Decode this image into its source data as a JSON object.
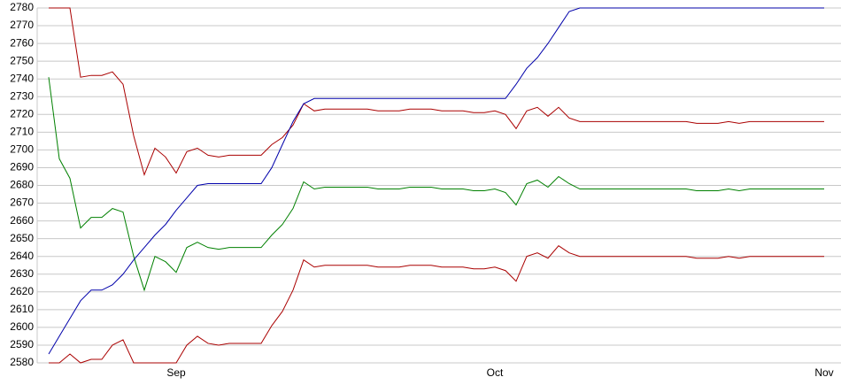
{
  "chart_data": {
    "type": "line",
    "categories": [
      null,
      null,
      null,
      null,
      null,
      null,
      null,
      null,
      null,
      null,
      null,
      null,
      "Sep",
      null,
      null,
      null,
      null,
      null,
      null,
      null,
      null,
      null,
      null,
      null,
      null,
      null,
      null,
      null,
      null,
      null,
      null,
      null,
      null,
      null,
      null,
      null,
      null,
      null,
      null,
      null,
      null,
      null,
      "Oct",
      null,
      null,
      null,
      null,
      null,
      null,
      null,
      null,
      null,
      null,
      null,
      null,
      null,
      null,
      null,
      null,
      null,
      null,
      null,
      null,
      null,
      null,
      null,
      null,
      null,
      null,
      null,
      null,
      null,
      null,
      "Nov"
    ],
    "series": [
      {
        "color": "#aa0000",
        "values": [
          2780,
          2780,
          2780,
          2741,
          2742,
          2742,
          2744,
          2737,
          2708,
          2686,
          2701,
          2696,
          2687,
          2699,
          2701,
          2697,
          2696,
          2697,
          2697,
          2697,
          2697,
          2703,
          2707,
          2714,
          2726,
          2722,
          2723,
          2723,
          2723,
          2723,
          2723,
          2722,
          2722,
          2722,
          2723,
          2723,
          2723,
          2722,
          2722,
          2722,
          2721,
          2721,
          2722,
          2720,
          2712,
          2722,
          2724,
          2719,
          2724,
          2718,
          2716,
          2716,
          2716,
          2716,
          2716,
          2716,
          2716,
          2716,
          2716,
          2716,
          2716,
          2715,
          2715,
          2715,
          2716,
          2715,
          2716,
          2716,
          2716,
          2716,
          2716,
          2716,
          2716,
          2716
        ]
      },
      {
        "color": "#008000",
        "values": [
          2741,
          2695,
          2684,
          2656,
          2662,
          2662,
          2667,
          2665,
          2640,
          2621,
          2640,
          2637,
          2631,
          2645,
          2648,
          2645,
          2644,
          2645,
          2645,
          2645,
          2645,
          2652,
          2658,
          2667,
          2682,
          2678,
          2679,
          2679,
          2679,
          2679,
          2679,
          2678,
          2678,
          2678,
          2679,
          2679,
          2679,
          2678,
          2678,
          2678,
          2677,
          2677,
          2678,
          2676,
          2669,
          2681,
          2683,
          2679,
          2685,
          2681,
          2678,
          2678,
          2678,
          2678,
          2678,
          2678,
          2678,
          2678,
          2678,
          2678,
          2678,
          2677,
          2677,
          2677,
          2678,
          2677,
          2678,
          2678,
          2678,
          2678,
          2678,
          2678,
          2678,
          2678
        ]
      },
      {
        "color": "#aa0000",
        "values": [
          2580,
          2580,
          2585,
          2580,
          2582,
          2582,
          2590,
          2593,
          2580,
          2580,
          2580,
          2580,
          2580,
          2590,
          2595,
          2591,
          2590,
          2591,
          2591,
          2591,
          2591,
          2601,
          2609,
          2621,
          2638,
          2634,
          2635,
          2635,
          2635,
          2635,
          2635,
          2634,
          2634,
          2634,
          2635,
          2635,
          2635,
          2634,
          2634,
          2634,
          2633,
          2633,
          2634,
          2632,
          2626,
          2640,
          2642,
          2639,
          2646,
          2642,
          2640,
          2640,
          2640,
          2640,
          2640,
          2640,
          2640,
          2640,
          2640,
          2640,
          2640,
          2639,
          2639,
          2639,
          2640,
          2639,
          2640,
          2640,
          2640,
          2640,
          2640,
          2640,
          2640,
          2640
        ]
      },
      {
        "color": "#0000aa",
        "values": [
          2585,
          2595,
          2605,
          2615,
          2621,
          2621,
          2624,
          2630,
          2638,
          2645,
          2652,
          2658,
          2666,
          2673,
          2680,
          2681,
          2681,
          2681,
          2681,
          2681,
          2681,
          2690,
          2703,
          2716,
          2726,
          2729,
          2729,
          2729,
          2729,
          2729,
          2729,
          2729,
          2729,
          2729,
          2729,
          2729,
          2729,
          2729,
          2729,
          2729,
          2729,
          2729,
          2729,
          2729,
          2737,
          2746,
          2752,
          2760,
          2769,
          2778,
          2780,
          2780,
          2780,
          2780,
          2780,
          2780,
          2780,
          2780,
          2780,
          2780,
          2780,
          2780,
          2780,
          2780,
          2780,
          2780,
          2780,
          2780,
          2780,
          2780,
          2780,
          2780,
          2780,
          2780
        ]
      }
    ],
    "ylim": [
      2580,
      2780
    ],
    "yticks": [
      2580,
      2590,
      2600,
      2610,
      2620,
      2630,
      2640,
      2650,
      2660,
      2670,
      2680,
      2690,
      2700,
      2710,
      2720,
      2730,
      2740,
      2750,
      2760,
      2770,
      2780
    ],
    "grid": true
  }
}
